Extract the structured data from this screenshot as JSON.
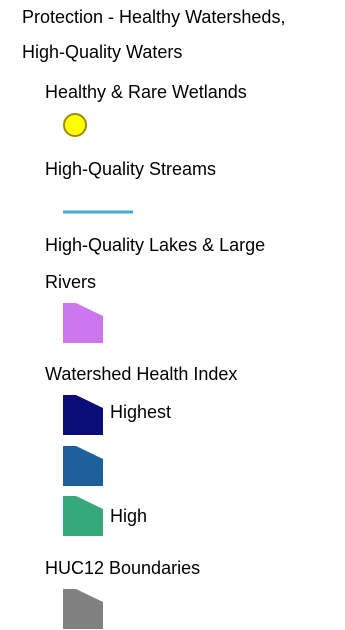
{
  "legend": {
    "title_line1": "Protection - Healthy Watersheds,",
    "title_line2": "High-Quality Waters",
    "layers": {
      "wetlands": {
        "title": "Healthy & Rare Wetlands",
        "symbol": "circle",
        "fill": "#ffff00",
        "stroke": "#a08a00"
      },
      "streams": {
        "title": "High-Quality Streams",
        "symbol": "line",
        "color": "#4aa8d8"
      },
      "lakes": {
        "title_line1": "High-Quality Lakes & Large",
        "title_line2": "Rivers",
        "symbol": "polygon",
        "fill": "#cc77ee"
      },
      "health_index": {
        "title": "Watershed Health Index",
        "classes": [
          {
            "label": "Highest",
            "fill": "#0c0c78"
          },
          {
            "label": "",
            "fill": "#1f5f9c"
          },
          {
            "label": "High",
            "fill": "#37a87a"
          }
        ]
      },
      "huc12": {
        "title": "HUC12 Boundaries",
        "symbol": "polygon",
        "fill": "#808080"
      }
    }
  }
}
